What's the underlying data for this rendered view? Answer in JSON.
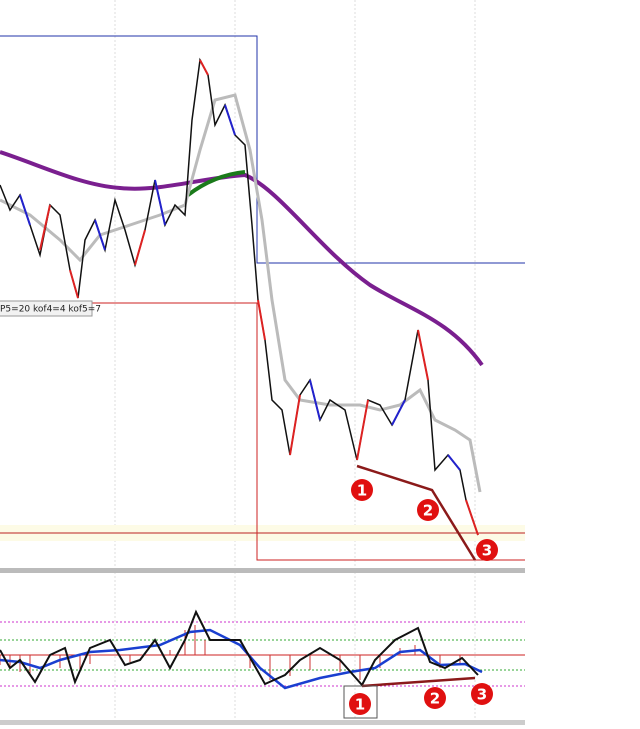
{
  "label": "P5=20 kof4=4 kof5=7",
  "markers": {
    "price": [
      "1",
      "2",
      "3"
    ],
    "oscillator": [
      "1",
      "2",
      "3"
    ]
  }
}
